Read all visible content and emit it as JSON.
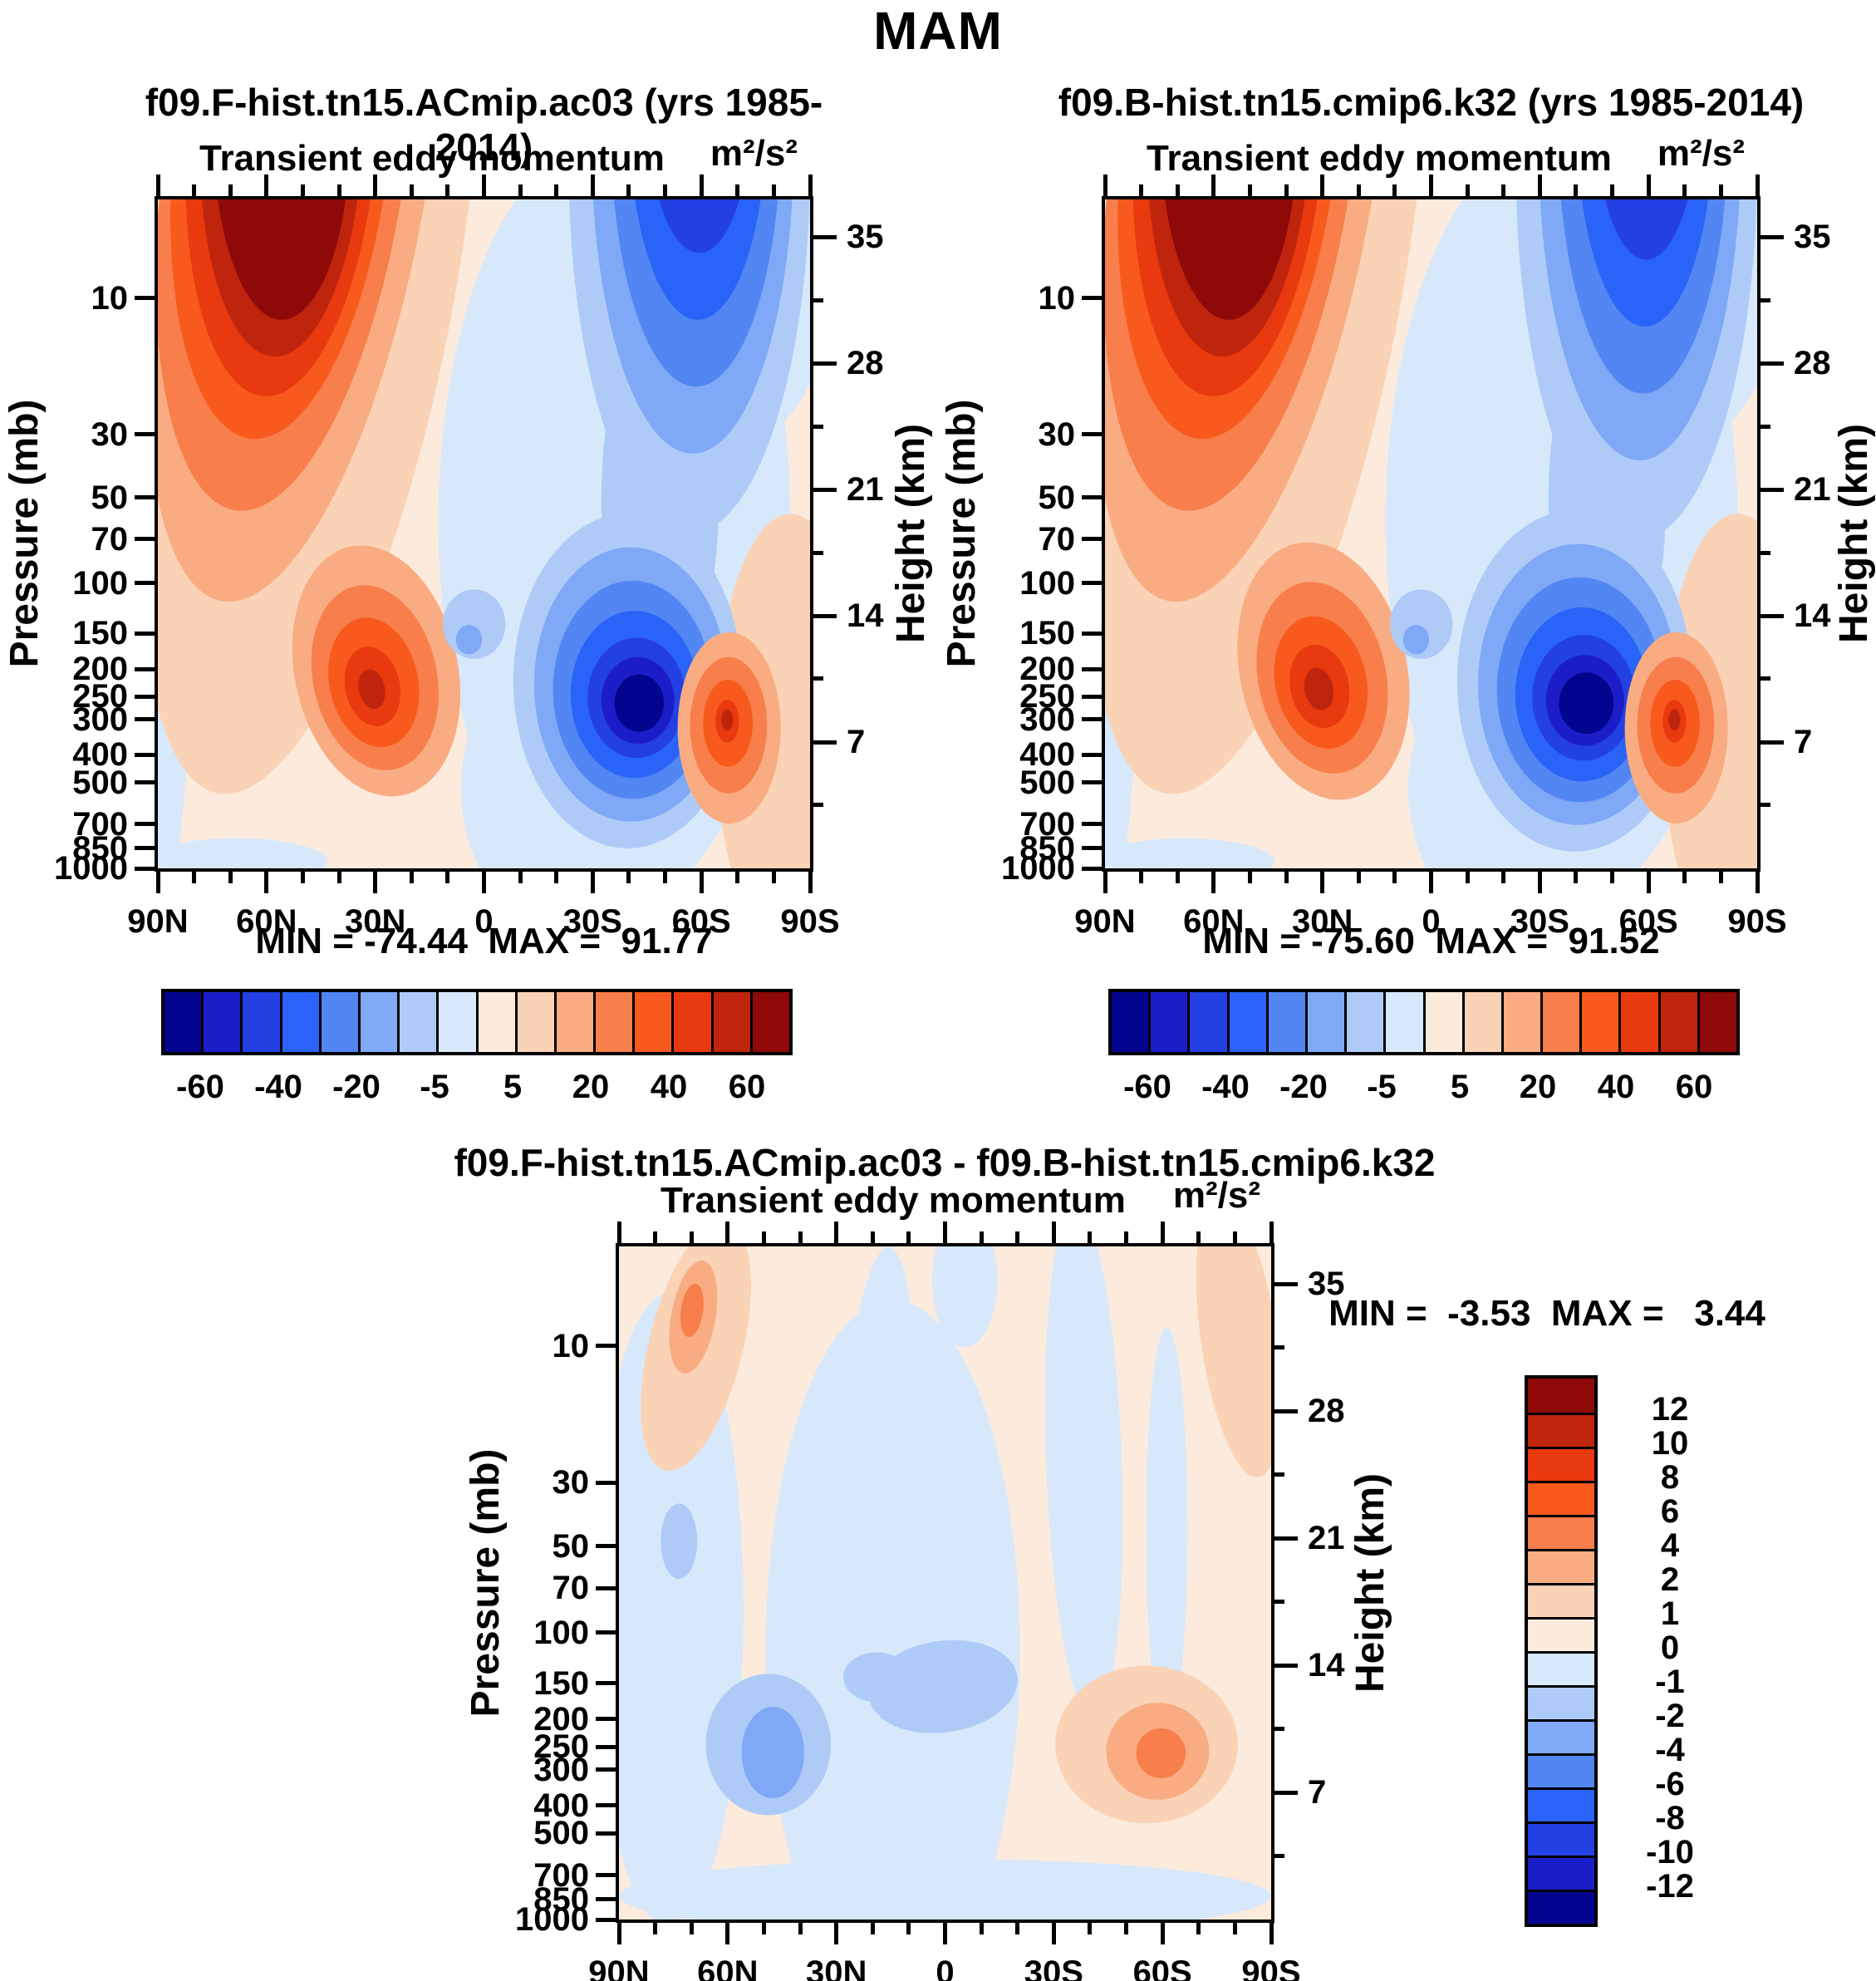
{
  "title": "MAM",
  "palette": [
    "#04058F",
    "#1B1EC8",
    "#2340E3",
    "#2A63F7",
    "#5186F3",
    "#7FA8F6",
    "#AECBF8",
    "#D8E8FB",
    "#FCEBDC",
    "#FAD2B6",
    "#F9AC82",
    "#F87E4B",
    "#F85A1D",
    "#E9390F",
    "#BF250C",
    "#8F0909"
  ],
  "axes": {
    "pressure_label": "Pressure (mb)",
    "height_label": "Height (km)",
    "pressure_ticks": [
      10,
      30,
      50,
      70,
      100,
      150,
      200,
      250,
      300,
      400,
      500,
      700,
      850,
      1000
    ],
    "height_ticks": [
      35,
      28,
      21,
      14,
      7
    ],
    "lat_ticks": [
      "90N",
      "60N",
      "30N",
      "0",
      "30S",
      "60S",
      "90S"
    ]
  },
  "colorbar_main": {
    "labels": [
      "-60",
      "-40",
      "-20",
      "-5",
      "5",
      "20",
      "40",
      "60"
    ]
  },
  "colorbar_diff": {
    "labels": [
      "12",
      "10",
      "8",
      "6",
      "4",
      "2",
      "1",
      "0",
      "-1",
      "-2",
      "-4",
      "-6",
      "-8",
      "-10",
      "-12"
    ]
  },
  "chart_data": [
    {
      "type": "contour",
      "title": "f09.F-hist.tn15.ACmip.ac03 (yrs 1985-2014)",
      "subtitle": "Transient eddy momentum",
      "units": "m²/s²",
      "stats": "MIN = -74.44  MAX =  91.77",
      "min": -74.44,
      "max": 91.77,
      "x_axis": [
        "90N",
        "60N",
        "30N",
        "0",
        "30S",
        "60S",
        "90S"
      ],
      "y_axis_pressure_mb": [
        10,
        30,
        50,
        70,
        100,
        150,
        200,
        250,
        300,
        400,
        500,
        700,
        850,
        1000
      ],
      "y_axis_height_km": [
        35,
        28,
        21,
        14,
        7
      ],
      "levels": [
        -60,
        -50,
        -40,
        -30,
        -20,
        -10,
        -5,
        0,
        5,
        10,
        20,
        30,
        40,
        50,
        60
      ],
      "features": [
        {
          "c": 7,
          "x": 0.7,
          "y": 0.48,
          "rx": 0.27,
          "ry": 0.58,
          "r": 0
        },
        {
          "c": 7,
          "x": 0.86,
          "y": 0.1,
          "rx": 0.18,
          "ry": 0.28,
          "r": 0
        },
        {
          "c": 7,
          "x": 0.655,
          "y": 0.88,
          "rx": 0.19,
          "ry": 0.23,
          "r": 0
        },
        {
          "c": 7,
          "x": 0.01,
          "y": 0.62,
          "rx": 0.04,
          "ry": 0.42,
          "r": 0
        },
        {
          "c": 7,
          "x": 0.12,
          "y": 0.99,
          "rx": 0.14,
          "ry": 0.035,
          "r": 0
        },
        {
          "c": 9,
          "x": 0.97,
          "y": 0.8,
          "rx": 0.115,
          "ry": 0.33,
          "r": 0
        },
        {
          "c": 9,
          "x": 0.235,
          "y": 0.1,
          "rx": 0.225,
          "ry": 0.8,
          "r": 10
        },
        {
          "c": 10,
          "x": 0.21,
          "y": -0.02,
          "rx": 0.2,
          "ry": 0.63,
          "r": 10
        },
        {
          "c": 11,
          "x": 0.195,
          "y": -0.06,
          "rx": 0.185,
          "ry": 0.53,
          "r": 8
        },
        {
          "c": 12,
          "x": 0.19,
          "y": -0.08,
          "rx": 0.165,
          "ry": 0.44,
          "r": 6
        },
        {
          "c": 13,
          "x": 0.19,
          "y": -0.09,
          "rx": 0.145,
          "ry": 0.385,
          "r": 4
        },
        {
          "c": 14,
          "x": 0.19,
          "y": -0.1,
          "rx": 0.125,
          "ry": 0.335,
          "r": 2
        },
        {
          "c": 15,
          "x": 0.19,
          "y": -0.1,
          "rx": 0.105,
          "ry": 0.28,
          "r": 0
        },
        {
          "c": 10,
          "x": 0.335,
          "y": 0.705,
          "rx": 0.125,
          "ry": 0.19,
          "r": -12
        },
        {
          "c": 11,
          "x": 0.333,
          "y": 0.715,
          "rx": 0.095,
          "ry": 0.14,
          "r": -12
        },
        {
          "c": 12,
          "x": 0.331,
          "y": 0.722,
          "rx": 0.068,
          "ry": 0.098,
          "r": -12
        },
        {
          "c": 13,
          "x": 0.329,
          "y": 0.728,
          "rx": 0.042,
          "ry": 0.06,
          "r": -12
        },
        {
          "c": 14,
          "x": 0.328,
          "y": 0.732,
          "rx": 0.02,
          "ry": 0.03,
          "r": -12
        },
        {
          "c": 6,
          "x": 0.815,
          "y": -0.05,
          "rx": 0.185,
          "ry": 0.55,
          "r": 0
        },
        {
          "c": 6,
          "x": 0.77,
          "y": 0.45,
          "rx": 0.09,
          "ry": 0.28,
          "r": 0
        },
        {
          "c": 6,
          "x": 0.72,
          "y": 0.72,
          "rx": 0.175,
          "ry": 0.25,
          "r": 0
        },
        {
          "c": 5,
          "x": 0.82,
          "y": -0.08,
          "rx": 0.155,
          "ry": 0.46,
          "r": 0
        },
        {
          "c": 4,
          "x": 0.825,
          "y": -0.1,
          "rx": 0.13,
          "ry": 0.38,
          "r": 0
        },
        {
          "c": 3,
          "x": 0.828,
          "y": -0.12,
          "rx": 0.105,
          "ry": 0.3,
          "r": 0
        },
        {
          "c": 2,
          "x": 0.83,
          "y": -0.14,
          "rx": 0.08,
          "ry": 0.22,
          "r": 0
        },
        {
          "c": 5,
          "x": 0.725,
          "y": 0.725,
          "rx": 0.148,
          "ry": 0.205,
          "r": 0
        },
        {
          "c": 4,
          "x": 0.728,
          "y": 0.733,
          "rx": 0.122,
          "ry": 0.163,
          "r": 0
        },
        {
          "c": 3,
          "x": 0.731,
          "y": 0.74,
          "rx": 0.098,
          "ry": 0.125,
          "r": 0
        },
        {
          "c": 2,
          "x": 0.734,
          "y": 0.745,
          "rx": 0.075,
          "ry": 0.09,
          "r": 0
        },
        {
          "c": 1,
          "x": 0.736,
          "y": 0.749,
          "rx": 0.056,
          "ry": 0.065,
          "r": 0
        },
        {
          "c": 0,
          "x": 0.738,
          "y": 0.753,
          "rx": 0.038,
          "ry": 0.043,
          "r": 0
        },
        {
          "c": 10,
          "x": 0.876,
          "y": 0.79,
          "rx": 0.079,
          "ry": 0.143,
          "r": 0
        },
        {
          "c": 11,
          "x": 0.875,
          "y": 0.786,
          "rx": 0.059,
          "ry": 0.102,
          "r": 0
        },
        {
          "c": 12,
          "x": 0.874,
          "y": 0.783,
          "rx": 0.038,
          "ry": 0.065,
          "r": 0
        },
        {
          "c": 13,
          "x": 0.873,
          "y": 0.78,
          "rx": 0.018,
          "ry": 0.032,
          "r": 0
        },
        {
          "c": 14,
          "x": 0.873,
          "y": 0.778,
          "rx": 0.009,
          "ry": 0.016,
          "r": 0
        },
        {
          "c": 6,
          "x": 0.485,
          "y": 0.635,
          "rx": 0.048,
          "ry": 0.052,
          "r": 0
        },
        {
          "c": 5,
          "x": 0.477,
          "y": 0.658,
          "rx": 0.02,
          "ry": 0.022,
          "r": 0
        }
      ]
    },
    {
      "type": "contour",
      "title": "f09.B-hist.tn15.cmip6.k32 (yrs 1985-2014)",
      "subtitle": "Transient eddy momentum",
      "units": "m²/s²",
      "stats": "MIN = -75.60  MAX =  91.52",
      "min": -75.6,
      "max": 91.52,
      "x_axis": [
        "90N",
        "60N",
        "30N",
        "0",
        "30S",
        "60S",
        "90S"
      ],
      "y_axis_pressure_mb": [
        10,
        30,
        50,
        70,
        100,
        150,
        200,
        250,
        300,
        400,
        500,
        700,
        850,
        1000
      ],
      "y_axis_height_km": [
        35,
        28,
        21,
        14,
        7
      ],
      "levels": [
        -60,
        -50,
        -40,
        -30,
        -20,
        -10,
        -5,
        0,
        5,
        10,
        20,
        30,
        40,
        50,
        60
      ],
      "features": [
        {
          "c": 7,
          "x": 0.7,
          "y": 0.48,
          "rx": 0.27,
          "ry": 0.58,
          "r": 0
        },
        {
          "c": 7,
          "x": 0.86,
          "y": 0.1,
          "rx": 0.18,
          "ry": 0.28,
          "r": 0
        },
        {
          "c": 7,
          "x": 0.655,
          "y": 0.88,
          "rx": 0.19,
          "ry": 0.23,
          "r": 0
        },
        {
          "c": 7,
          "x": 0.01,
          "y": 0.62,
          "rx": 0.04,
          "ry": 0.42,
          "r": 0
        },
        {
          "c": 7,
          "x": 0.12,
          "y": 0.99,
          "rx": 0.14,
          "ry": 0.035,
          "r": 0
        },
        {
          "c": 9,
          "x": 0.97,
          "y": 0.8,
          "rx": 0.115,
          "ry": 0.33,
          "r": 0
        },
        {
          "c": 9,
          "x": 0.235,
          "y": 0.1,
          "rx": 0.225,
          "ry": 0.8,
          "r": 10
        },
        {
          "c": 10,
          "x": 0.21,
          "y": -0.02,
          "rx": 0.2,
          "ry": 0.63,
          "r": 10
        },
        {
          "c": 11,
          "x": 0.195,
          "y": -0.06,
          "rx": 0.185,
          "ry": 0.53,
          "r": 8
        },
        {
          "c": 12,
          "x": 0.19,
          "y": -0.08,
          "rx": 0.165,
          "ry": 0.44,
          "r": 6
        },
        {
          "c": 13,
          "x": 0.19,
          "y": -0.09,
          "rx": 0.145,
          "ry": 0.385,
          "r": 4
        },
        {
          "c": 14,
          "x": 0.19,
          "y": -0.1,
          "rx": 0.125,
          "ry": 0.335,
          "r": 2
        },
        {
          "c": 15,
          "x": 0.19,
          "y": -0.1,
          "rx": 0.105,
          "ry": 0.28,
          "r": 0
        },
        {
          "c": 10,
          "x": 0.335,
          "y": 0.705,
          "rx": 0.128,
          "ry": 0.195,
          "r": -12
        },
        {
          "c": 11,
          "x": 0.333,
          "y": 0.715,
          "rx": 0.098,
          "ry": 0.145,
          "r": -12
        },
        {
          "c": 12,
          "x": 0.331,
          "y": 0.722,
          "rx": 0.07,
          "ry": 0.1,
          "r": -12
        },
        {
          "c": 13,
          "x": 0.329,
          "y": 0.728,
          "rx": 0.045,
          "ry": 0.063,
          "r": -12
        },
        {
          "c": 14,
          "x": 0.328,
          "y": 0.732,
          "rx": 0.022,
          "ry": 0.032,
          "r": -12
        },
        {
          "c": 6,
          "x": 0.815,
          "y": -0.05,
          "rx": 0.185,
          "ry": 0.56,
          "r": 0
        },
        {
          "c": 6,
          "x": 0.77,
          "y": 0.45,
          "rx": 0.09,
          "ry": 0.28,
          "r": 0
        },
        {
          "c": 6,
          "x": 0.72,
          "y": 0.72,
          "rx": 0.18,
          "ry": 0.255,
          "r": 0
        },
        {
          "c": 5,
          "x": 0.82,
          "y": -0.08,
          "rx": 0.155,
          "ry": 0.47,
          "r": 0
        },
        {
          "c": 4,
          "x": 0.825,
          "y": -0.1,
          "rx": 0.13,
          "ry": 0.39,
          "r": 0
        },
        {
          "c": 3,
          "x": 0.828,
          "y": -0.12,
          "rx": 0.105,
          "ry": 0.31,
          "r": 0
        },
        {
          "c": 2,
          "x": 0.83,
          "y": -0.14,
          "rx": 0.08,
          "ry": 0.23,
          "r": 0
        },
        {
          "c": 5,
          "x": 0.725,
          "y": 0.725,
          "rx": 0.153,
          "ry": 0.21,
          "r": 0
        },
        {
          "c": 4,
          "x": 0.728,
          "y": 0.733,
          "rx": 0.127,
          "ry": 0.168,
          "r": 0
        },
        {
          "c": 3,
          "x": 0.731,
          "y": 0.74,
          "rx": 0.102,
          "ry": 0.13,
          "r": 0
        },
        {
          "c": 2,
          "x": 0.734,
          "y": 0.745,
          "rx": 0.079,
          "ry": 0.094,
          "r": 0
        },
        {
          "c": 1,
          "x": 0.736,
          "y": 0.749,
          "rx": 0.06,
          "ry": 0.068,
          "r": 0
        },
        {
          "c": 0,
          "x": 0.738,
          "y": 0.753,
          "rx": 0.042,
          "ry": 0.046,
          "r": 0
        },
        {
          "c": 10,
          "x": 0.876,
          "y": 0.79,
          "rx": 0.079,
          "ry": 0.143,
          "r": 0
        },
        {
          "c": 11,
          "x": 0.875,
          "y": 0.786,
          "rx": 0.059,
          "ry": 0.102,
          "r": 0
        },
        {
          "c": 12,
          "x": 0.874,
          "y": 0.783,
          "rx": 0.038,
          "ry": 0.065,
          "r": 0
        },
        {
          "c": 13,
          "x": 0.873,
          "y": 0.78,
          "rx": 0.018,
          "ry": 0.032,
          "r": 0
        },
        {
          "c": 14,
          "x": 0.873,
          "y": 0.778,
          "rx": 0.009,
          "ry": 0.016,
          "r": 0
        },
        {
          "c": 6,
          "x": 0.485,
          "y": 0.635,
          "rx": 0.048,
          "ry": 0.052,
          "r": 0
        },
        {
          "c": 5,
          "x": 0.477,
          "y": 0.658,
          "rx": 0.02,
          "ry": 0.022,
          "r": 0
        }
      ]
    },
    {
      "type": "contour",
      "title": "f09.F-hist.tn15.ACmip.ac03 - f09.B-hist.tn15.cmip6.k32",
      "subtitle": "Transient eddy momentum",
      "units": "m²/s²",
      "stats": "MIN =  -3.53  MAX =   3.44",
      "min": -3.53,
      "max": 3.44,
      "x_axis": [
        "90N",
        "60N",
        "30N",
        "0",
        "30S",
        "60S",
        "90S"
      ],
      "y_axis_pressure_mb": [
        10,
        30,
        50,
        70,
        100,
        150,
        200,
        250,
        300,
        400,
        500,
        700,
        850,
        1000
      ],
      "y_axis_height_km": [
        35,
        28,
        21,
        14,
        7
      ],
      "levels": [
        -12,
        -10,
        -8,
        -6,
        -4,
        -2,
        -1,
        0,
        1,
        2,
        4,
        6,
        8,
        10,
        12
      ],
      "features": [
        {
          "c": 7,
          "x": 0.076,
          "y": 0.54,
          "rx": 0.115,
          "ry": 0.47,
          "r": 0
        },
        {
          "c": 7,
          "x": 0.42,
          "y": 0.6,
          "rx": 0.195,
          "ry": 0.52,
          "r": 0
        },
        {
          "c": 7,
          "x": 0.395,
          "y": 0.345,
          "rx": 0.058,
          "ry": 0.345,
          "r": 3
        },
        {
          "c": 7,
          "x": 0.713,
          "y": 0.32,
          "rx": 0.058,
          "ry": 0.38,
          "r": -2
        },
        {
          "c": 7,
          "x": 0.84,
          "y": 0.42,
          "rx": 0.032,
          "ry": 0.3,
          "r": 0
        },
        {
          "c": 7,
          "x": 0.5,
          "y": 0.965,
          "rx": 0.5,
          "ry": 0.055,
          "r": 0
        },
        {
          "c": 7,
          "x": 0.53,
          "y": 0.05,
          "rx": 0.05,
          "ry": 0.1,
          "r": 0
        },
        {
          "c": 9,
          "x": 0.118,
          "y": 0.148,
          "rx": 0.072,
          "ry": 0.19,
          "r": 14
        },
        {
          "c": 10,
          "x": 0.114,
          "y": 0.105,
          "rx": 0.034,
          "ry": 0.085,
          "r": 10
        },
        {
          "c": 11,
          "x": 0.112,
          "y": 0.095,
          "rx": 0.017,
          "ry": 0.04,
          "r": 8
        },
        {
          "c": 9,
          "x": 0.95,
          "y": 0.135,
          "rx": 0.058,
          "ry": 0.21,
          "r": -8
        },
        {
          "c": 6,
          "x": 0.092,
          "y": 0.438,
          "rx": 0.028,
          "ry": 0.056,
          "r": 0
        },
        {
          "c": 6,
          "x": 0.229,
          "y": 0.74,
          "rx": 0.096,
          "ry": 0.105,
          "r": 0
        },
        {
          "c": 5,
          "x": 0.236,
          "y": 0.752,
          "rx": 0.048,
          "ry": 0.068,
          "r": 0
        },
        {
          "c": 6,
          "x": 0.497,
          "y": 0.654,
          "rx": 0.115,
          "ry": 0.068,
          "r": -8
        },
        {
          "c": 6,
          "x": 0.395,
          "y": 0.64,
          "rx": 0.051,
          "ry": 0.037,
          "r": 0
        },
        {
          "c": 9,
          "x": 0.809,
          "y": 0.74,
          "rx": 0.14,
          "ry": 0.117,
          "r": 0
        },
        {
          "c": 10,
          "x": 0.826,
          "y": 0.75,
          "rx": 0.079,
          "ry": 0.072,
          "r": 0
        },
        {
          "c": 11,
          "x": 0.831,
          "y": 0.753,
          "rx": 0.038,
          "ry": 0.037,
          "r": 0
        }
      ]
    }
  ]
}
